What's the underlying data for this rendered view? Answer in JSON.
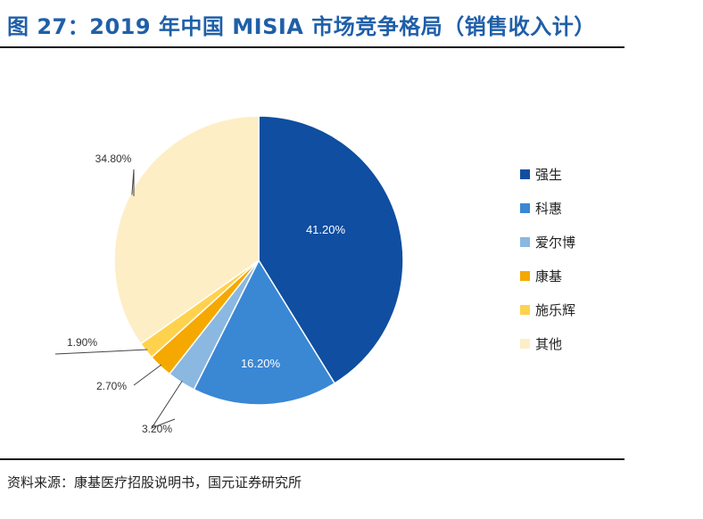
{
  "title": "图 27：2019 年中国 MISIA 市场竞争格局（销售收入计）",
  "source": "资料来源：康基医疗招股说明书，国元证券研究所",
  "chart_data": {
    "type": "pie",
    "title": "",
    "slices": [
      {
        "label": "强生",
        "value": 41.2,
        "text": "41.20%",
        "color": "#0f4ea0"
      },
      {
        "label": "科惠",
        "value": 16.2,
        "text": "16.20%",
        "color": "#3a87d4"
      },
      {
        "label": "爱尔博",
        "value": 3.2,
        "text": "3.20%",
        "color": "#8ab8e0"
      },
      {
        "label": "康基",
        "value": 2.7,
        "text": "2.70%",
        "color": "#f5a800"
      },
      {
        "label": "施乐辉",
        "value": 1.9,
        "text": "1.90%",
        "color": "#ffd24d"
      },
      {
        "label": "其他",
        "value": 34.8,
        "text": "34.80%",
        "color": "#fdeec6"
      }
    ],
    "legend_position": "right"
  }
}
